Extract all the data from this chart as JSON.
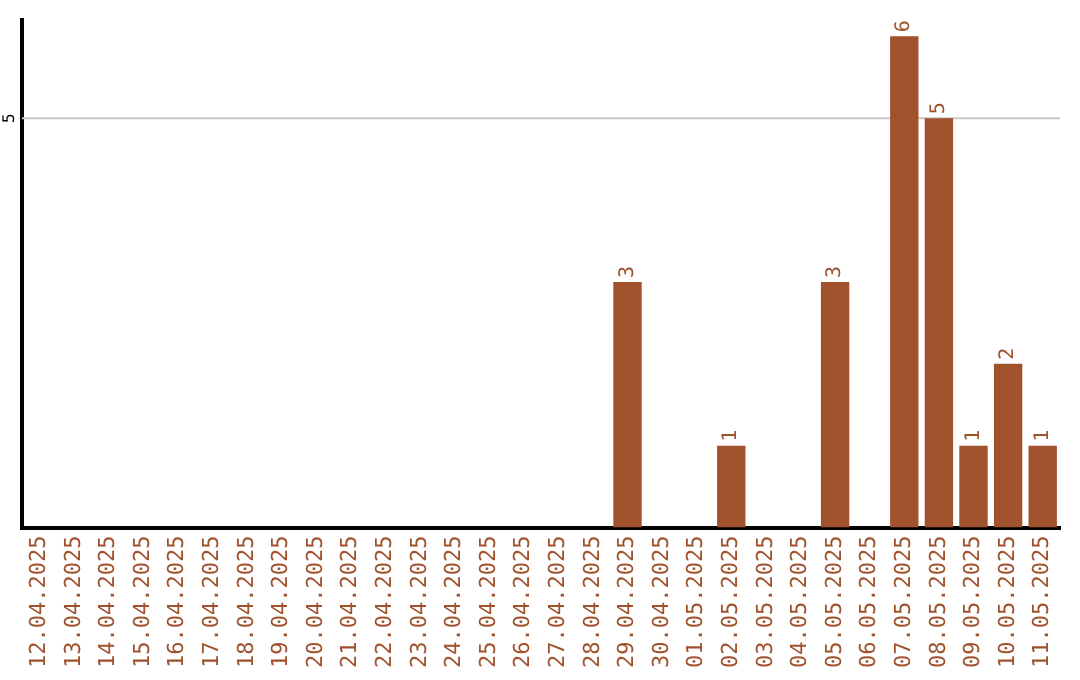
{
  "chart_data": {
    "type": "bar",
    "categories": [
      "12.04.2025",
      "13.04.2025",
      "14.04.2025",
      "15.04.2025",
      "16.04.2025",
      "17.04.2025",
      "18.04.2025",
      "19.04.2025",
      "20.04.2025",
      "21.04.2025",
      "22.04.2025",
      "23.04.2025",
      "24.04.2025",
      "25.04.2025",
      "26.04.2025",
      "27.04.2025",
      "28.04.2025",
      "29.04.2025",
      "30.04.2025",
      "01.05.2025",
      "02.05.2025",
      "03.05.2025",
      "04.05.2025",
      "05.05.2025",
      "06.05.2025",
      "07.05.2025",
      "08.05.2025",
      "09.05.2025",
      "10.05.2025",
      "11.05.2025"
    ],
    "values": [
      null,
      null,
      null,
      null,
      null,
      null,
      null,
      null,
      null,
      null,
      null,
      null,
      null,
      null,
      null,
      null,
      null,
      3,
      null,
      null,
      1,
      null,
      null,
      3,
      null,
      6,
      5,
      1,
      2,
      1
    ],
    "data_labels": true,
    "color": "#a0522d",
    "ylim": [
      0,
      6.2
    ],
    "ref_lines": [
      {
        "axis": "y",
        "value": 5,
        "label": "5",
        "color": "#c8c8c8"
      }
    ],
    "legend": false
  }
}
